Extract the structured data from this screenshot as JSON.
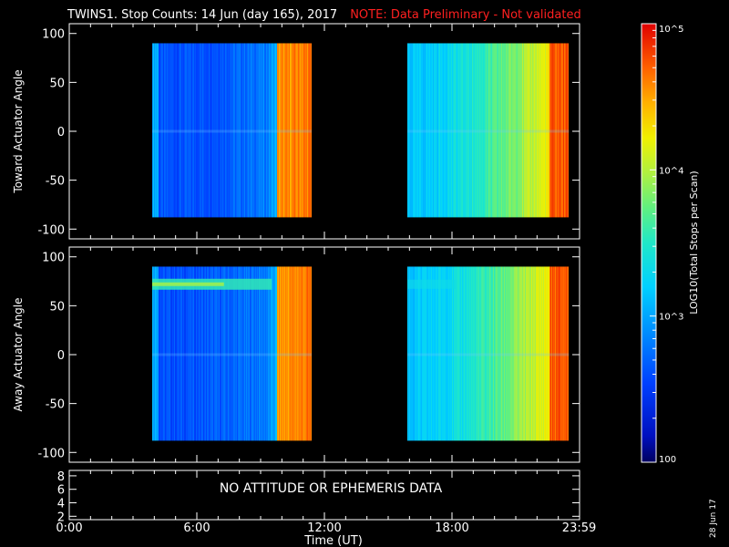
{
  "title": "TWINS1. Stop Counts: 14 Jun (day 165), 2017",
  "note": "NOTE: Data Preliminary - Not validated",
  "date_stamp": "28 Jun 17",
  "no_data_message": "NO ATTITUDE OR EPHEMERIS DATA",
  "chart_data": [
    {
      "type": "heatmap",
      "panel": "top",
      "ylabel": "Toward Actuator Angle",
      "ylim": [
        -110,
        110
      ],
      "y_ticks": [
        100,
        50,
        0,
        -50,
        -100
      ],
      "xlim": [
        0,
        24
      ],
      "data_blocks": [
        {
          "x_start": 3.9,
          "x_end": 11.4,
          "y_range": [
            -88,
            90
          ]
        },
        {
          "x_start": 15.9,
          "x_end": 23.5,
          "y_range": [
            -88,
            90
          ]
        }
      ],
      "trend": "log10 counts rising with time within each block, from ~300 to ~60000"
    },
    {
      "type": "heatmap",
      "panel": "middle",
      "ylabel": "Away Actuator Angle",
      "ylim": [
        -110,
        110
      ],
      "y_ticks": [
        100,
        50,
        0,
        -50,
        -100
      ],
      "xlim": [
        0,
        24
      ],
      "data_blocks": [
        {
          "x_start": 3.9,
          "x_end": 11.4,
          "y_range": [
            -88,
            90
          ]
        },
        {
          "x_start": 15.9,
          "x_end": 23.5,
          "y_range": [
            -88,
            90
          ]
        }
      ],
      "features": "enhanced band near +70 deg in first block"
    },
    {
      "type": "line",
      "panel": "bottom",
      "y_ticks": [
        8,
        6,
        4,
        2
      ],
      "ylim": [
        1.5,
        8.8
      ]
    }
  ],
  "x_axis": {
    "label": "Time (UT)",
    "ticks": [
      "0:00",
      "6:00",
      "12:00",
      "18:00",
      "23:59"
    ],
    "tick_hours": [
      0,
      6,
      12,
      18,
      23.98
    ]
  },
  "colorbar": {
    "label": "LOG10(Total Stops per Scan)",
    "scale": "log",
    "range": [
      100,
      100000
    ],
    "tick_labels": [
      "10^5",
      "10^4",
      "10^3",
      "100"
    ],
    "tick_values": [
      100000,
      10000,
      1000,
      100
    ]
  }
}
